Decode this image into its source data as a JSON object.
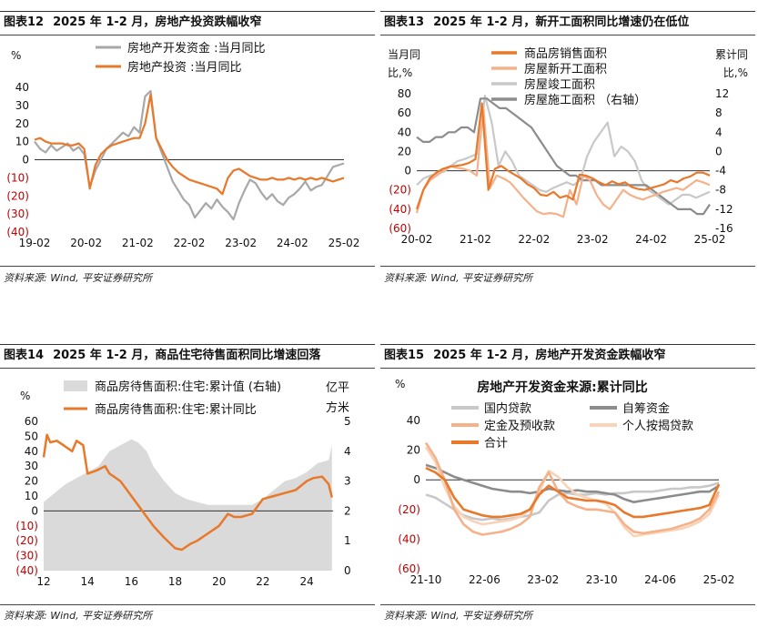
{
  "source_text": "资料来源: Wind, 平安证券研究所",
  "colors": {
    "orange": "#E8782A",
    "gray": "#A8A8A8",
    "light_gray": "#C8C8C8",
    "dark_gray": "#8C8C8C",
    "peach": "#F5B28A",
    "light_peach": "#F9D3B8",
    "area": "#DADADA",
    "negative": "#C00000"
  },
  "chart_data": [
    {
      "id": "fig12",
      "num": "图表12",
      "title": "2025 年 1-2 月，房地产投资跌幅收窄",
      "type": "line",
      "unit": "%",
      "ylim": [
        -40,
        40
      ],
      "yticks": [
        "40",
        "30",
        "20",
        "10",
        "0",
        "(10)",
        "(20)",
        "(30)",
        "(40)"
      ],
      "xticks": [
        "19-02",
        "20-02",
        "21-02",
        "22-02",
        "23-02",
        "24-02",
        "25-02"
      ],
      "series": [
        {
          "name": "房地产开发资金 :当月同比",
          "color": "gray",
          "values": [
            10,
            6,
            4,
            8,
            5,
            7,
            9,
            5,
            7,
            3,
            -15,
            -6,
            0,
            6,
            9,
            12,
            15,
            13,
            18,
            15,
            35,
            38,
            12,
            4,
            -4,
            -12,
            -17,
            -22,
            -25,
            -32,
            -28,
            -24,
            -27,
            -22,
            -26,
            -29,
            -33,
            -24,
            -17,
            -11,
            -13,
            -18,
            -22,
            -19,
            -23,
            -25,
            -21,
            -19,
            -16,
            -12,
            -17,
            -15,
            -14,
            -9,
            -4,
            -3,
            -2
          ]
        },
        {
          "name": "房地产投资 :当月同比",
          "color": "orange",
          "values": [
            11,
            12,
            10,
            9,
            9,
            9,
            8,
            8,
            9,
            6,
            -16,
            -3,
            3,
            6,
            8,
            9,
            10,
            11,
            12,
            12,
            20,
            36,
            12,
            6,
            0,
            -4,
            -7,
            -9,
            -11,
            -12,
            -13,
            -14,
            -15,
            -16,
            -19,
            -10,
            -6,
            -5,
            -7,
            -9,
            -10,
            -11,
            -11,
            -10,
            -11,
            -11,
            -10,
            -11,
            -10,
            -11,
            -10,
            -11,
            -10,
            -11,
            -12,
            -11,
            -10
          ]
        }
      ]
    },
    {
      "id": "fig13",
      "num": "图表13",
      "title": "2025 年 1-2 月，新开工面积同比增速仍在低位",
      "type": "line",
      "ylabel_left": [
        "当月同",
        "比,%"
      ],
      "ylabel_right": [
        "累计同",
        "比,%"
      ],
      "ylim": [
        -60,
        80
      ],
      "yticks": [
        "80",
        "60",
        "40",
        "20",
        "0",
        "(20)",
        "(40)",
        "(60)"
      ],
      "ylim_right": [
        -16,
        12
      ],
      "yticks_right": [
        "12",
        "8",
        "4",
        "0",
        "-4",
        "-8",
        "-12",
        "-16"
      ],
      "xticks": [
        "20-02",
        "21-02",
        "22-02",
        "23-02",
        "24-02",
        "25-02"
      ],
      "series": [
        {
          "name": "商品房销售面积",
          "color": "orange",
          "axis": "left",
          "values": [
            -40,
            -20,
            -8,
            -2,
            2,
            4,
            5,
            6,
            8,
            12,
            70,
            -20,
            2,
            5,
            0,
            -4,
            -8,
            -14,
            -18,
            -25,
            -26,
            -22,
            -28,
            -26,
            -30,
            -4,
            -5,
            -8,
            -12,
            -15,
            -11,
            -14,
            -12,
            -17,
            -19,
            -20,
            -18,
            -16,
            -14,
            -10,
            -12,
            -8,
            -6,
            -2,
            -2,
            -5
          ]
        },
        {
          "name": "房屋新开工面积",
          "color": "peach",
          "axis": "left",
          "values": [
            -44,
            -20,
            -10,
            -5,
            0,
            5,
            3,
            2,
            0,
            -5,
            65,
            -18,
            -5,
            -8,
            -12,
            -20,
            -28,
            -35,
            -42,
            -45,
            -44,
            -45,
            -48,
            -20,
            -35,
            -5,
            -10,
            -25,
            -35,
            -40,
            -30,
            -20,
            -25,
            -28,
            -30,
            -27,
            -25,
            -22,
            -20,
            -18,
            -20,
            -15,
            -10,
            -12,
            -15
          ]
        },
        {
          "name": "房屋竣工面积",
          "color": "light_gray",
          "axis": "left",
          "values": [
            -15,
            -8,
            -5,
            -3,
            -1,
            5,
            10,
            12,
            15,
            18,
            78,
            50,
            5,
            20,
            10,
            -5,
            -10,
            -15,
            -20,
            -22,
            -18,
            -15,
            -12,
            -15,
            -10,
            15,
            30,
            40,
            50,
            15,
            25,
            20,
            10,
            -10,
            -20,
            -25,
            -30,
            -35,
            -30,
            -25,
            -25,
            -28,
            -25,
            -22
          ]
        },
        {
          "name": "房屋施工面积 （右轴）",
          "color": "dark_gray",
          "axis": "right",
          "values": [
            3,
            2,
            2,
            3,
            3,
            4,
            4,
            5,
            5,
            4,
            11,
            11,
            10,
            9,
            9,
            8,
            7,
            6,
            5,
            3,
            1,
            -1,
            -3,
            -4,
            -5,
            -5,
            -6,
            -6,
            -6,
            -7,
            -7,
            -7,
            -7,
            -7,
            -7,
            -7,
            -7,
            -8,
            -9,
            -10,
            -11,
            -12,
            -12,
            -12,
            -13,
            -13,
            -11
          ]
        }
      ]
    },
    {
      "id": "fig14",
      "num": "图表14",
      "title": "2025 年 1-2 月，商品住宅待售面积同比增速回落",
      "type": "line+area",
      "unit": "%",
      "ylabel_right": [
        "亿平",
        "方米"
      ],
      "ylim": [
        -40,
        60
      ],
      "yticks": [
        "60",
        "50",
        "40",
        "30",
        "20",
        "10",
        "0",
        "(10)",
        "(20)",
        "(30)",
        "(40)"
      ],
      "ylim_right": [
        0,
        5
      ],
      "yticks_right": [
        "5",
        "4",
        "3",
        "2",
        "1",
        "0"
      ],
      "xticks": [
        "12",
        "14",
        "16",
        "18",
        "20",
        "22",
        "24"
      ],
      "x_range": [
        2012,
        2025.2
      ],
      "series": [
        {
          "name": "商品房待售面积:住宅:累计值 (右轴)",
          "color": "area",
          "axis": "right",
          "kind": "area",
          "x": [
            2012,
            2012.5,
            2013,
            2013.5,
            2014,
            2014.5,
            2015,
            2015.5,
            2016,
            2016.3,
            2016.7,
            2017,
            2017.5,
            2018,
            2018.5,
            2019,
            2019.5,
            2020,
            2020.5,
            2021,
            2021.5,
            2022,
            2022.5,
            2023,
            2023.5,
            2024,
            2024.5,
            2025,
            2025.15
          ],
          "values": [
            2.3,
            2.6,
            2.9,
            3.1,
            3.3,
            3.5,
            4.0,
            4.2,
            4.4,
            4.3,
            4.0,
            3.5,
            3.0,
            2.6,
            2.4,
            2.3,
            2.2,
            2.2,
            2.2,
            2.2,
            2.2,
            2.4,
            2.7,
            3.0,
            3.1,
            3.3,
            3.6,
            3.7,
            4.2
          ]
        },
        {
          "name": "商品房待售面积:住宅:累计同比",
          "color": "orange",
          "axis": "left",
          "kind": "line",
          "x": [
            2012,
            2012.15,
            2012.3,
            2012.6,
            2012.9,
            2013,
            2013.3,
            2013.5,
            2013.8,
            2014,
            2014.4,
            2014.8,
            2015,
            2015.5,
            2016,
            2016.5,
            2017,
            2017.5,
            2018,
            2018.3,
            2018.7,
            2019,
            2019.5,
            2020,
            2020.4,
            2020.7,
            2021,
            2021.5,
            2022,
            2022.5,
            2023,
            2023.5,
            2024,
            2024.3,
            2024.7,
            2025,
            2025.15
          ],
          "values": [
            36,
            51,
            46,
            47,
            44,
            43,
            40,
            47,
            44,
            25,
            27,
            30,
            25,
            20,
            10,
            0,
            -10,
            -18,
            -25,
            -26,
            -22,
            -20,
            -15,
            -10,
            -2,
            -4,
            -4,
            -2,
            8,
            10,
            12,
            14,
            20,
            22,
            23,
            18,
            9
          ]
        }
      ]
    },
    {
      "id": "fig15",
      "num": "图表15",
      "title": "2025 年 1-2 月，房地产开发资金跌幅收窄",
      "type": "line",
      "inner_title": "房地产开发资金来源:累计同比",
      "unit": "%",
      "ylim": [
        -60,
        40
      ],
      "yticks": [
        "40",
        "20",
        "0",
        "(20)",
        "(40)",
        "(60)"
      ],
      "xticks": [
        "21-10",
        "22-06",
        "23-02",
        "23-10",
        "24-06",
        "25-02"
      ],
      "series": [
        {
          "name": "国内贷款",
          "color": "light_gray",
          "values": [
            -10,
            -12,
            -16,
            -20,
            -24,
            -26,
            -27,
            -26,
            -27,
            -26,
            -25,
            -24,
            -22,
            -14,
            -10,
            -9,
            -10,
            -10,
            -9,
            -10,
            -9,
            -9,
            -8,
            -8,
            -8,
            -7,
            -6,
            -6,
            -5,
            -5,
            -4,
            -2
          ]
        },
        {
          "name": "自筹资金",
          "color": "dark_gray",
          "values": [
            10,
            8,
            5,
            2,
            0,
            -2,
            -4,
            -6,
            -7,
            -8,
            -8,
            -9,
            -8,
            -6,
            -7,
            -8,
            -7,
            -8,
            -8,
            -9,
            -10,
            -13,
            -15,
            -14,
            -13,
            -12,
            -11,
            -10,
            -9,
            -8,
            -8,
            -4
          ]
        },
        {
          "name": "定金及预收款",
          "color": "peach",
          "values": [
            25,
            15,
            0,
            -20,
            -30,
            -35,
            -37,
            -36,
            -35,
            -33,
            -30,
            -25,
            -5,
            5,
            -8,
            -15,
            -18,
            -20,
            -20,
            -21,
            -22,
            -30,
            -35,
            -36,
            -35,
            -34,
            -33,
            -31,
            -29,
            -26,
            -20,
            -8
          ]
        },
        {
          "name": "个人按揭贷款",
          "color": "light_peach",
          "values": [
            22,
            12,
            -5,
            -18,
            -25,
            -28,
            -30,
            -29,
            -28,
            -27,
            -25,
            -20,
            -8,
            6,
            2,
            -5,
            -10,
            -12,
            -14,
            -16,
            -22,
            -32,
            -38,
            -37,
            -36,
            -35,
            -34,
            -33,
            -31,
            -28,
            -23,
            -10
          ]
        },
        {
          "name": "合计",
          "color": "orange",
          "values": [
            8,
            5,
            0,
            -12,
            -20,
            -22,
            -24,
            -25,
            -25,
            -24,
            -23,
            -20,
            -10,
            -4,
            -8,
            -12,
            -13,
            -14,
            -14,
            -15,
            -17,
            -22,
            -25,
            -25,
            -24,
            -23,
            -22,
            -21,
            -20,
            -19,
            -17,
            -3
          ]
        }
      ]
    }
  ]
}
